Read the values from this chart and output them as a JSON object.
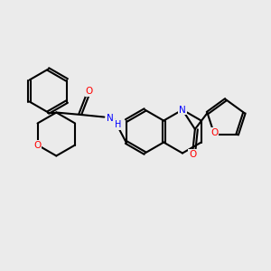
{
  "background_color": "#ebebeb",
  "line_color": "#000000",
  "bond_width": 1.5,
  "nitrogen_color": "#0000FF",
  "oxygen_color": "#FF0000",
  "figsize": [
    3.0,
    3.0
  ],
  "dpi": 100,
  "xlim": [
    0,
    10
  ],
  "ylim": [
    0,
    10
  ]
}
